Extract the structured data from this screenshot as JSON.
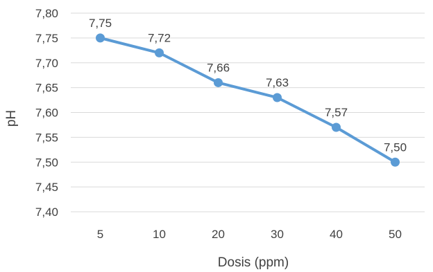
{
  "chart_data": {
    "type": "line",
    "title": "",
    "xlabel": "Dosis (ppm)",
    "ylabel": "pH",
    "categories": [
      "5",
      "10",
      "20",
      "30",
      "40",
      "50"
    ],
    "series": [
      {
        "values": [
          7.75,
          7.72,
          7.66,
          7.63,
          7.57,
          7.5
        ],
        "labels": [
          "7,75",
          "7,72",
          "7,66",
          "7,63",
          "7,57",
          "7,50"
        ],
        "color": "#5b9bd5"
      }
    ],
    "ylim": [
      7.4,
      7.8
    ],
    "yticks": [
      7.4,
      7.45,
      7.5,
      7.55,
      7.6,
      7.65,
      7.7,
      7.75,
      7.8
    ],
    "ytick_labels": [
      "7,40",
      "7,45",
      "7,50",
      "7,55",
      "7,60",
      "7,65",
      "7,70",
      "7,75",
      "7,80"
    ],
    "grid": true,
    "legend": "none"
  }
}
